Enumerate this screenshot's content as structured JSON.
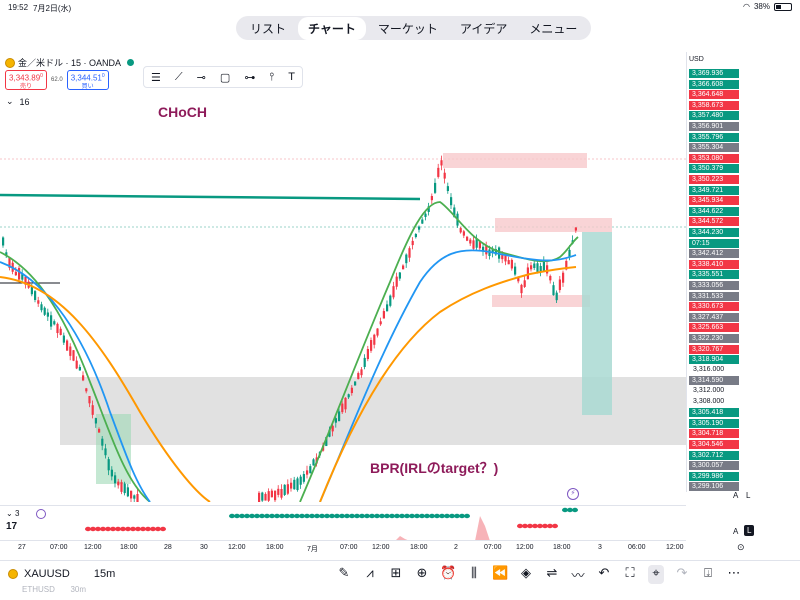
{
  "status_bar": {
    "time": "19:52",
    "date": "7月2日(水)",
    "battery": "38%"
  },
  "tabs": [
    {
      "label": "リスト"
    },
    {
      "label": "チャート"
    },
    {
      "label": "マーケット"
    },
    {
      "label": "アイデア"
    },
    {
      "label": "メニュー"
    }
  ],
  "chart_header": {
    "symbol_line": "金／米ドル · 15 · OANDA",
    "sell_price": "3,343.89",
    "sell_price_sup": "0",
    "sell_label": "売り",
    "spread": "62.0",
    "buy_price": "3,344.51",
    "buy_price_sup": "0",
    "buy_label": "買い",
    "indicator_count": "16"
  },
  "price_axis": {
    "currency": "USD",
    "labels": [
      {
        "text": "3,369.936",
        "color": "#089981"
      },
      {
        "text": "3,366.608",
        "color": "#089981"
      },
      {
        "text": "3,364.648",
        "color": "#f23645"
      },
      {
        "text": "3,358.673",
        "color": "#f23645"
      },
      {
        "text": "3,357.480",
        "color": "#089981"
      },
      {
        "text": "3,356.901",
        "color": "#787b86"
      },
      {
        "text": "3,355.796",
        "color": "#089981"
      },
      {
        "text": "3,355.304",
        "color": "#787b86"
      },
      {
        "text": "3,353.080",
        "color": "#f23645"
      },
      {
        "text": "3,350.379",
        "color": "#089981"
      },
      {
        "text": "3,350.223",
        "color": "#f23645"
      },
      {
        "text": "3,349.721",
        "color": "#089981"
      },
      {
        "text": "3,345.934",
        "color": "#f23645"
      },
      {
        "text": "3,344.622",
        "color": "#089981"
      },
      {
        "text": "3,344.572",
        "color": "#f23645"
      },
      {
        "text": "3,344.230",
        "color": "#089981"
      },
      {
        "text": "07:15",
        "color": "#089981"
      },
      {
        "text": "3,342.412",
        "color": "#787b86"
      },
      {
        "text": "3,338.410",
        "color": "#f23645"
      },
      {
        "text": "3,335.551",
        "color": "#089981"
      },
      {
        "text": "3,333.056",
        "color": "#787b86"
      },
      {
        "text": "3,331.533",
        "color": "#787b86"
      },
      {
        "text": "3,330.673",
        "color": "#f23645"
      },
      {
        "text": "3,327.437",
        "color": "#787b86"
      },
      {
        "text": "3,325.663",
        "color": "#f23645"
      },
      {
        "text": "3,322.230",
        "color": "#787b86"
      },
      {
        "text": "3,320.767",
        "color": "#f23645"
      },
      {
        "text": "3,318.904",
        "color": "#089981"
      },
      {
        "text": "3,316.000",
        "color": ""
      },
      {
        "text": "3,314.590",
        "color": "#787b86"
      },
      {
        "text": "3,312.000",
        "color": ""
      },
      {
        "text": "3,308.000",
        "color": ""
      },
      {
        "text": "3,305.418",
        "color": "#089981"
      },
      {
        "text": "3,305.190",
        "color": "#089981"
      },
      {
        "text": "3,304.718",
        "color": "#f23645"
      },
      {
        "text": "3,304.546",
        "color": "#f23645"
      },
      {
        "text": "3,302.712",
        "color": "#089981"
      },
      {
        "text": "3,300.057",
        "color": "#787b86"
      },
      {
        "text": "3,299.986",
        "color": "#089981"
      },
      {
        "text": "3,299.106",
        "color": "#787b86"
      }
    ]
  },
  "time_axis": [
    "27",
    "07:00",
    "12:00",
    "18:00",
    "28",
    "30",
    "12:00",
    "18:00",
    "7月",
    "07:00",
    "12:00",
    "18:00",
    "2",
    "07:00",
    "12:00",
    "18:00",
    "3",
    "06:00",
    "12:00"
  ],
  "annotations": {
    "choch": "CHoCH",
    "bpr": "BPR(IRLのtarget？)"
  },
  "sub_pane": {
    "count": "3"
  },
  "axis_buttons": {
    "a": "A",
    "l": "L"
  },
  "bottom_bar": {
    "symbol": "XAUUSD",
    "timeframe": "15m",
    "ghost_symbol": "ETHUSD",
    "ghost_tf": "30m"
  },
  "colors": {
    "up": "#089981",
    "down": "#f23645",
    "ema_fast": "#4caf50",
    "ema_mid": "#2196f3",
    "ema_slow": "#ff9800"
  }
}
